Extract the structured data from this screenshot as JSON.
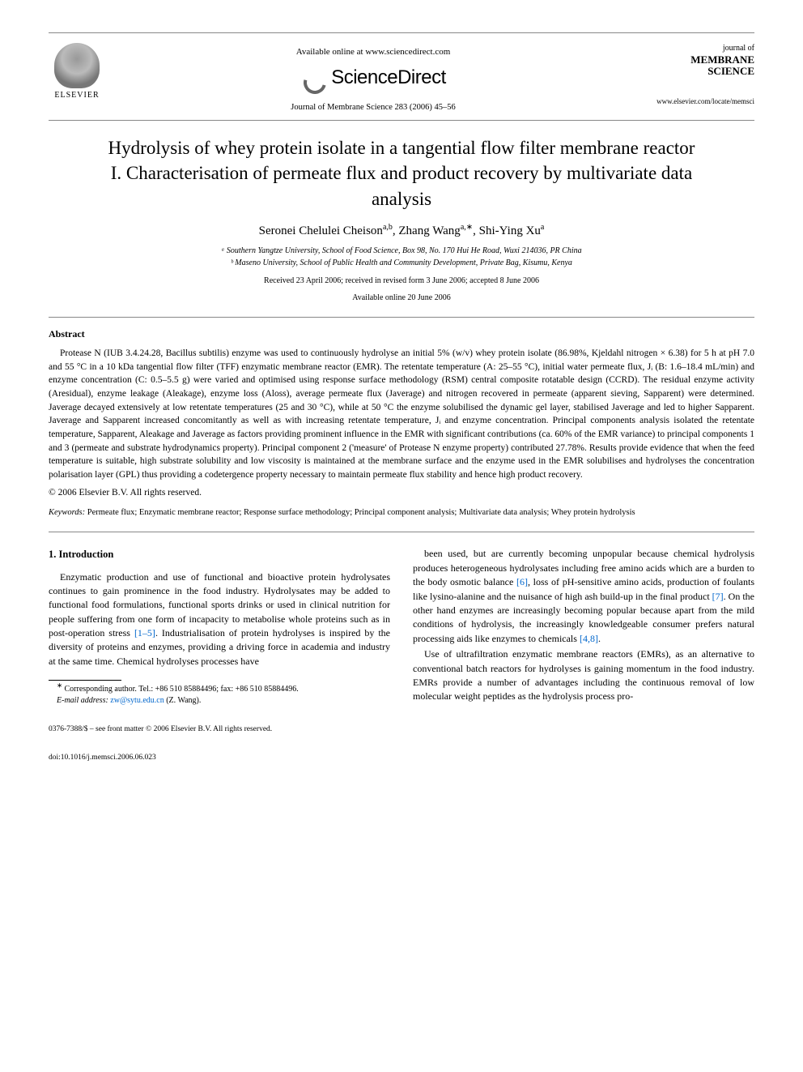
{
  "header": {
    "available_line": "Available online at www.sciencedirect.com",
    "sd_brand": "ScienceDirect",
    "journal_ref": "Journal of Membrane Science 283 (2006) 45–56",
    "elsevier_label": "ELSEVIER",
    "jms_small": "journal of",
    "jms_line1": "MEMBRANE",
    "jms_line2": "SCIENCE",
    "jms_url": "www.elsevier.com/locate/memsci"
  },
  "title": "Hydrolysis of whey protein isolate in a tangential flow filter membrane reactor",
  "subtitle": "I. Characterisation of permeate flux and product recovery by multivariate data analysis",
  "authors_html": "Seronei Chelulei Cheison",
  "author1_sup": "a,b",
  "author2": "Zhang Wang",
  "author2_sup": "a,∗",
  "author3": "Shi-Ying Xu",
  "author3_sup": "a",
  "affil_a": "ᵃ Southern Yangtze University, School of Food Science, Box 98, No. 170 Hui He Road, Wuxi 214036, PR China",
  "affil_b": "ᵇ Maseno University, School of Public Health and Community Development, Private Bag, Kisumu, Kenya",
  "dates_line1": "Received 23 April 2006; received in revised form 3 June 2006; accepted 8 June 2006",
  "dates_line2": "Available online 20 June 2006",
  "abstract_heading": "Abstract",
  "abstract_p1": "Protease N (IUB 3.4.24.28, Bacillus subtilis) enzyme was used to continuously hydrolyse an initial 5% (w/v) whey protein isolate (86.98%, Kjeldahl nitrogen × 6.38) for 5 h at pH 7.0 and 55 °C in a 10 kDa tangential flow filter (TFF) enzymatic membrane reactor (EMR). The retentate temperature (A: 25–55 °C), initial water permeate flux, Jᵢ (B: 1.6–18.4 mL/min) and enzyme concentration (C: 0.5–5.5 g) were varied and optimised using response surface methodology (RSM) central composite rotatable design (CCRD). The residual enzyme activity (Aresidual), enzyme leakage (Aleakage), enzyme loss (Aloss), average permeate flux (Javerage) and nitrogen recovered in permeate (apparent sieving, Sapparent) were determined. Javerage decayed extensively at low retentate temperatures (25 and 30 °C), while at 50 °C the enzyme solubilised the dynamic gel layer, stabilised Javerage and led to higher Sapparent. Javerage and Sapparent increased concomitantly as well as with increasing retentate temperature, Jᵢ and enzyme concentration. Principal components analysis isolated the retentate temperature, Sapparent, Aleakage and Javerage as factors providing prominent influence in the EMR with significant contributions (ca. 60% of the EMR variance) to principal components 1 and 3 (permeate and substrate hydrodynamics property). Principal component 2 ('measure' of Protease N enzyme property) contributed 27.78%. Results provide evidence that when the feed temperature is suitable, high substrate solubility and low viscosity is maintained at the membrane surface and the enzyme used in the EMR solubilises and hydrolyses the concentration polarisation layer (GPL) thus providing a codetergence property necessary to maintain permeate flux stability and hence high product recovery.",
  "copyright": "© 2006 Elsevier B.V. All rights reserved.",
  "kw_label": "Keywords:",
  "keywords": "Permeate flux; Enzymatic membrane reactor; Response surface methodology; Principal component analysis; Multivariate data analysis; Whey protein hydrolysis",
  "intro_heading": "1.  Introduction",
  "col1_p1": "Enzymatic production and use of functional and bioactive protein hydrolysates continues to gain prominence in the food industry. Hydrolysates may be added to functional food formulations, functional sports drinks or used in clinical nutrition for people suffering from one form of incapacity to metabolise whole proteins such as in post-operation stress [1–5]. Industrialisation of protein hydrolyses is inspired by the diversity of proteins and enzymes, providing a driving force in academia and industry at the same time. Chemical hydrolyses processes have",
  "col2_p1": "been used, but are currently becoming unpopular because chemical hydrolysis produces heterogeneous hydrolysates including free amino acids which are a burden to the body osmotic balance [6], loss of pH-sensitive amino acids, production of foulants like lysino-alanine and the nuisance of high ash build-up in the final product [7]. On the other hand enzymes are increasingly becoming popular because apart from the mild conditions of hydrolysis, the increasingly knowledgeable consumer prefers natural processing aids like enzymes to chemicals [4,8].",
  "col2_p2": "Use of ultrafiltration enzymatic membrane reactors (EMRs), as an alternative to conventional batch reactors for hydrolyses is gaining momentum in the food industry. EMRs provide a number of advantages including the continuous removal of low molecular weight peptides as the hydrolysis process pro-",
  "footnote_marker": "∗",
  "footnote_text": "Corresponding author. Tel.: +86 510 85884496; fax: +86 510 85884496.",
  "footnote_email_label": "E-mail address:",
  "footnote_email": "zw@sytu.edu.cn",
  "footnote_email_attrib": "(Z. Wang).",
  "bottom_issn": "0376-7388/$ – see front matter © 2006 Elsevier B.V. All rights reserved.",
  "bottom_doi": "doi:10.1016/j.memsci.2006.06.023",
  "ref_links": [
    "[1–5]",
    "[6]",
    "[7]",
    "[4,8]"
  ]
}
